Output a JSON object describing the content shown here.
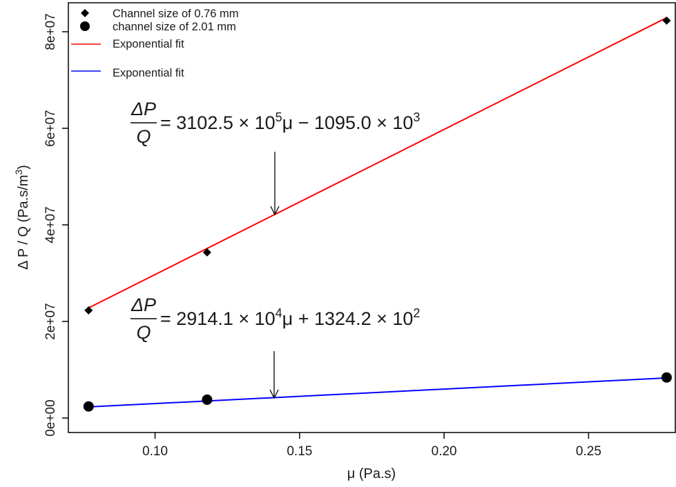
{
  "chart_data": {
    "type": "scatter",
    "xlabel": "μ (Pa.s)",
    "ylabel": "Δ P / Q (Pa.s/m³)",
    "ylabel_main": "Δ P / Q (Pa.s/m",
    "ylabel_sup": "3",
    "ylabel_close": ")",
    "xlim": [
      0.07,
      0.28
    ],
    "ylim": [
      -3000000,
      86000000
    ],
    "x_ticks": [
      0.1,
      0.15,
      0.2,
      0.25
    ],
    "x_tick_labels": [
      "0.10",
      "0.15",
      "0.20",
      "0.25"
    ],
    "y_ticks": [
      0,
      20000000,
      40000000,
      60000000,
      80000000
    ],
    "y_tick_labels": [
      "0e+00",
      "2e+07",
      "4e+07",
      "6e+07",
      "8e+07"
    ],
    "grid": false,
    "legend_position": "top-left",
    "series": [
      {
        "name": "Channel size of 0.76 mm",
        "marker": "diamond",
        "color": "#000000",
        "x": [
          0.077,
          0.118,
          0.277
        ],
        "y": [
          22300000,
          34300000,
          82300000
        ]
      },
      {
        "name": "channel size of 2.01 mm",
        "marker": "circle",
        "color": "#000000",
        "x": [
          0.077,
          0.118,
          0.277
        ],
        "y": [
          2400000,
          3800000,
          8400000
        ]
      }
    ],
    "fits": [
      {
        "name": "Exponential fit",
        "color": "#ff0000",
        "x": [
          0.077,
          0.277
        ],
        "y": [
          22800000,
          82900000
        ]
      },
      {
        "name": "Exponential fit",
        "color": "#0000ff",
        "x": [
          0.077,
          0.277
        ],
        "y": [
          2300000,
          8300000
        ]
      }
    ],
    "annotations": [
      {
        "frac_num": "ΔP",
        "frac_den": "Q",
        "rhs_a": "= 3102.5 × 10",
        "rhs_a_exp": "5",
        "rhs_b": "μ − 1095.0 × 10",
        "rhs_b_exp": "3",
        "arrow_to": [
          0.141,
          42500000
        ]
      },
      {
        "frac_num": "ΔP",
        "frac_den": "Q",
        "rhs_a": "= 2914.1 × 10",
        "rhs_a_exp": "4",
        "rhs_b": "μ + 1324.2 × 10",
        "rhs_b_exp": "2",
        "arrow_to": [
          0.141,
          3800000
        ]
      }
    ]
  }
}
